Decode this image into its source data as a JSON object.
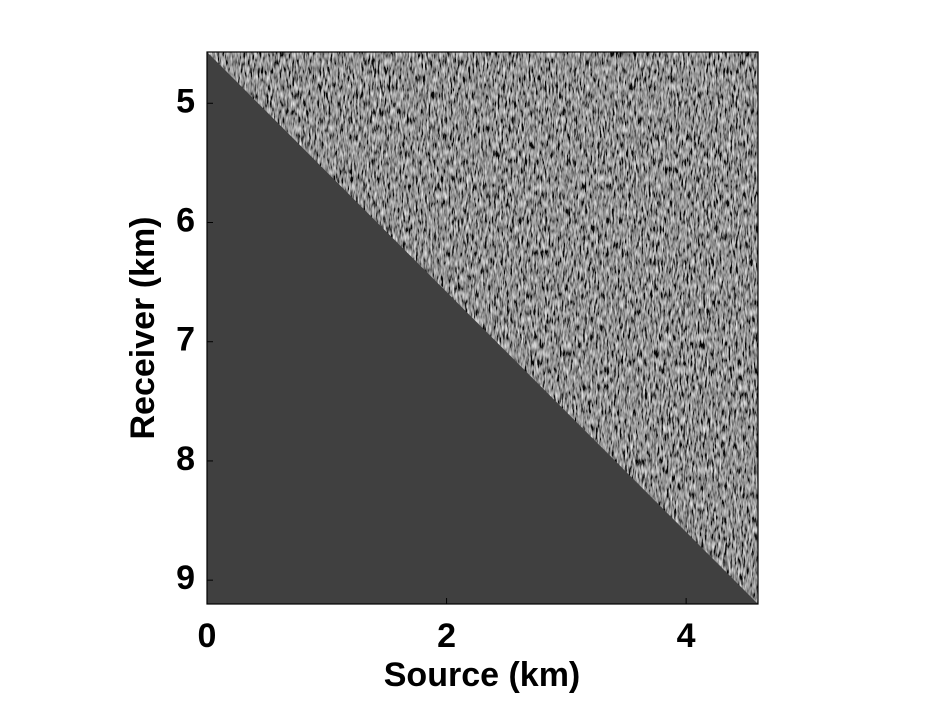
{
  "chart_data": {
    "type": "image",
    "xlabel": "Source (km)",
    "ylabel": "Receiver (km)",
    "xlim": [
      0,
      4.6
    ],
    "ylim": [
      4.57,
      9.2
    ],
    "xticks": [
      0,
      2,
      4
    ],
    "yticks": [
      5,
      6,
      7,
      8,
      9
    ],
    "color": "#404040"
  }
}
